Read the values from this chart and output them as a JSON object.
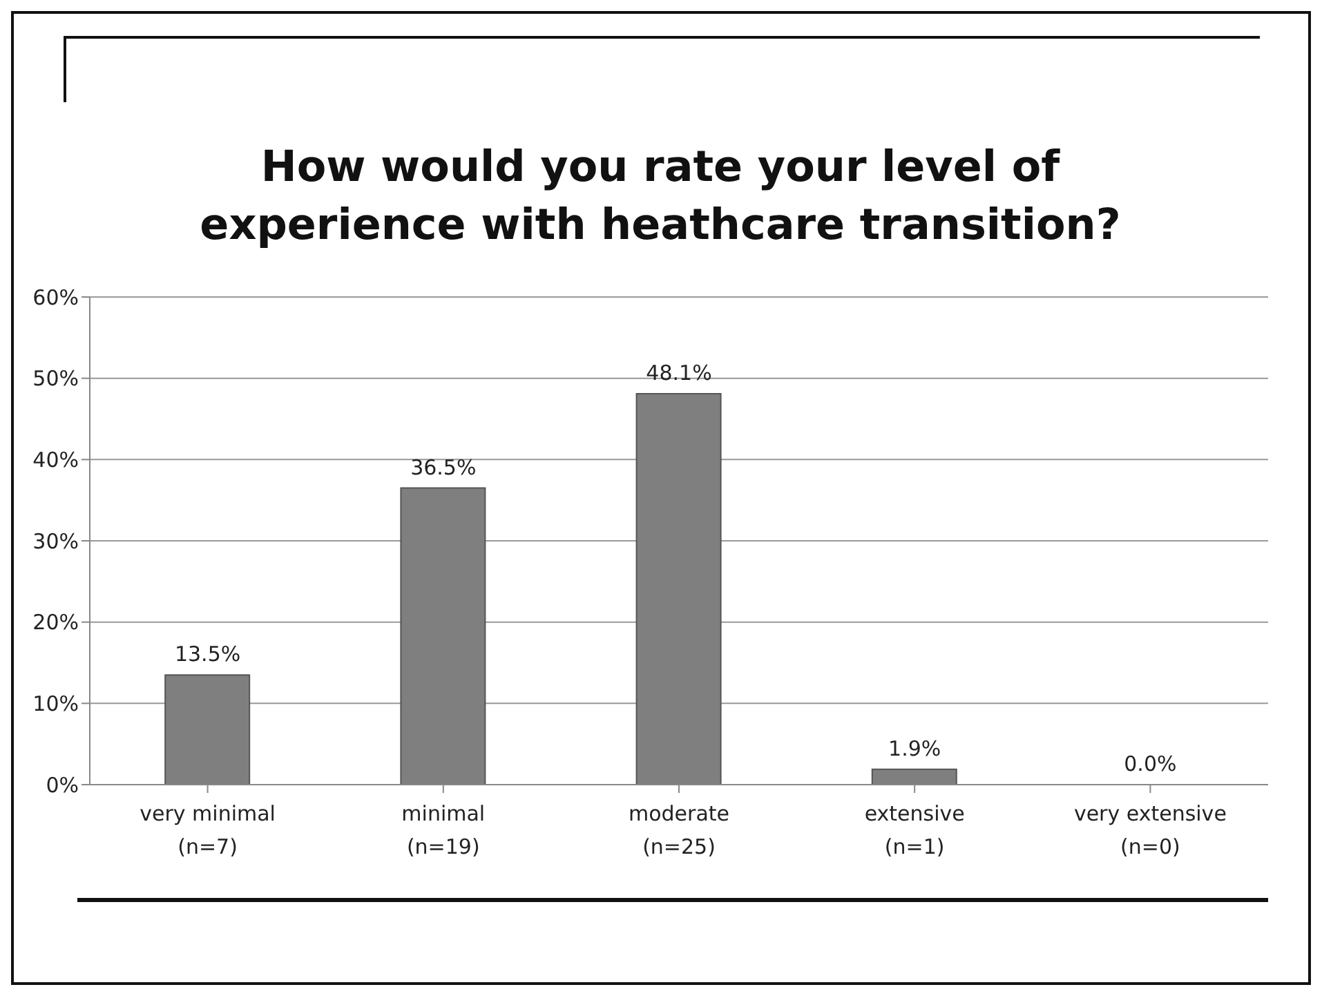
{
  "chart_data": {
    "type": "bar",
    "title": "How would you rate your level of experience with heathcare transition?",
    "categories": [
      "very minimal\n(n=7)",
      "minimal\n(n=19)",
      "moderate\n(n=25)",
      "extensive\n(n=1)",
      "very extensive\n(n=0)"
    ],
    "values": [
      13.5,
      36.5,
      48.1,
      1.9,
      0.0
    ],
    "value_labels": [
      "13.5%",
      "36.5%",
      "48.1%",
      "1.9%",
      "0.0%"
    ],
    "color": "#7f7f7f",
    "ylim": [
      0,
      60
    ],
    "yticks": [
      {
        "value": 0,
        "label": "0%"
      },
      {
        "value": 10,
        "label": "10%"
      },
      {
        "value": 20,
        "label": "20%"
      },
      {
        "value": 30,
        "label": "30%"
      },
      {
        "value": 40,
        "label": "40%"
      },
      {
        "value": 50,
        "label": "50%"
      },
      {
        "value": 60,
        "label": "60%"
      }
    ],
    "grid": "y",
    "legend": false
  }
}
